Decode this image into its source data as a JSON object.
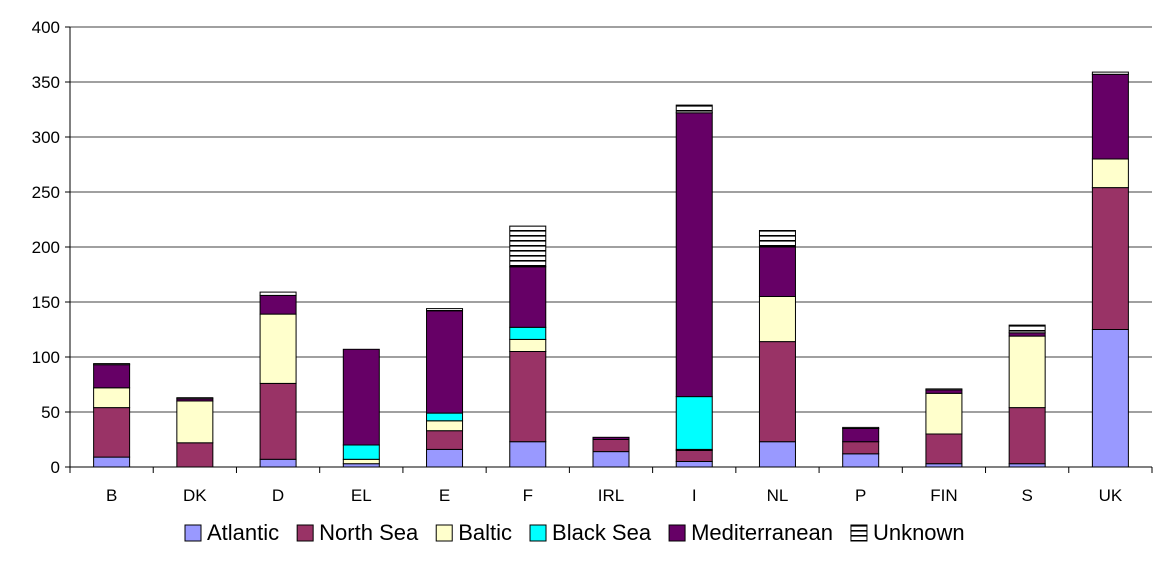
{
  "chart_data": {
    "type": "bar",
    "stacked": true,
    "categories": [
      "B",
      "DK",
      "D",
      "EL",
      "E",
      "F",
      "IRL",
      "I",
      "NL",
      "P",
      "FIN",
      "S",
      "UK"
    ],
    "ylim": [
      0,
      400
    ],
    "yticks": [
      0,
      50,
      100,
      150,
      200,
      250,
      300,
      350,
      400
    ],
    "grid": true,
    "legend_position": "bottom",
    "series": [
      {
        "name": "Atlantic",
        "color": "#9999ff",
        "pattern": "solid",
        "values": [
          9,
          0,
          7,
          3,
          16,
          23,
          14,
          5,
          23,
          12,
          3,
          3,
          125
        ]
      },
      {
        "name": "North Sea",
        "color": "#993366",
        "pattern": "solid",
        "values": [
          45,
          22,
          69,
          0,
          17,
          82,
          11,
          10,
          91,
          11,
          27,
          51,
          129
        ]
      },
      {
        "name": "Baltic",
        "color": "#ffffcc",
        "pattern": "solid",
        "values": [
          18,
          38,
          63,
          4,
          9,
          11,
          0,
          1,
          41,
          0,
          37,
          65,
          26
        ]
      },
      {
        "name": "Black Sea",
        "color": "#00ffff",
        "pattern": "solid",
        "values": [
          0,
          0,
          0,
          13,
          7,
          11,
          0,
          48,
          0,
          0,
          0,
          0,
          0
        ]
      },
      {
        "name": "Mediterranean",
        "color": "#660066",
        "pattern": "solid",
        "values": [
          21,
          2,
          17,
          87,
          93,
          55,
          2,
          258,
          45,
          12,
          3,
          3,
          77
        ]
      },
      {
        "name": "Unknown",
        "color": "#ffffff",
        "pattern": "hatched",
        "values": [
          1,
          1,
          3,
          0,
          2,
          37,
          0,
          7,
          15,
          1,
          1,
          7,
          2
        ]
      }
    ]
  }
}
